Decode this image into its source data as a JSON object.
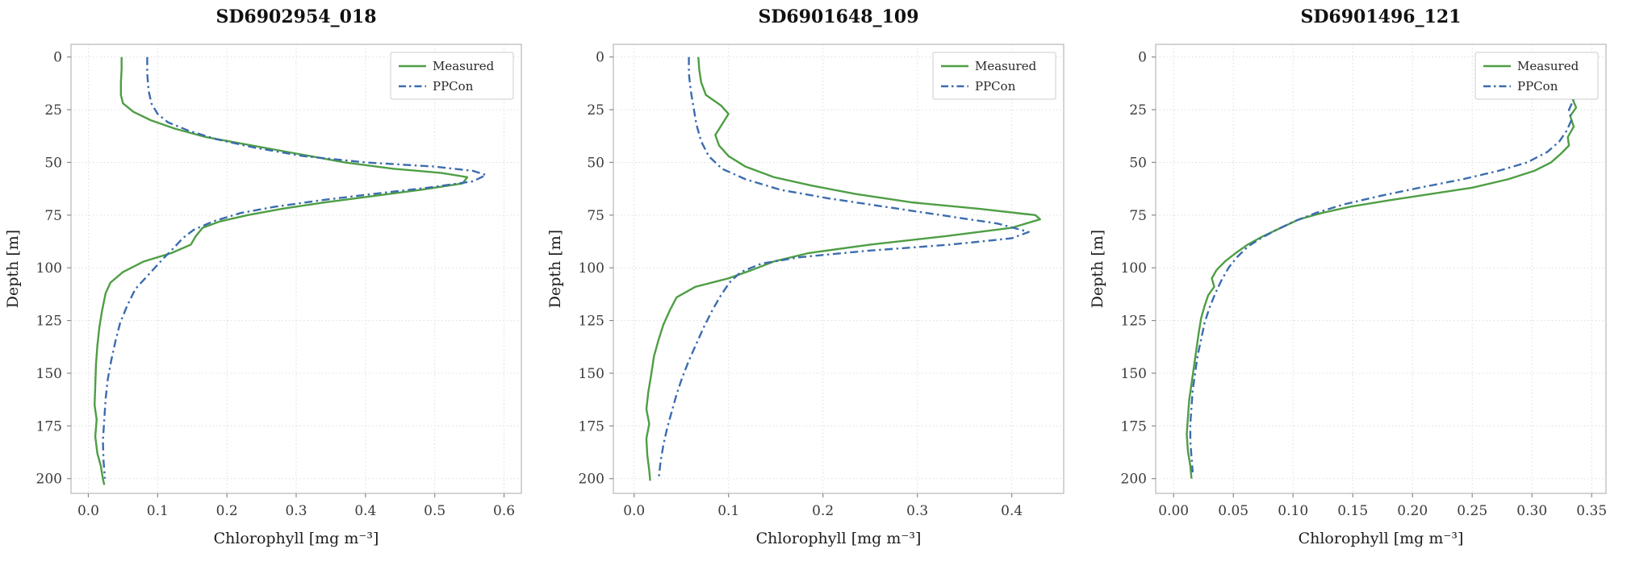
{
  "figure": {
    "background": "#ffffff",
    "grid_color": "#dcdcdc",
    "spine_color": "#bdbdbd",
    "tick_color": "#8a8a8a"
  },
  "chart_data": [
    {
      "type": "line",
      "title": "SD6902954_018",
      "xlabel": "Chlorophyll [mg m⁻³]",
      "ylabel": "Depth [m]",
      "legend_position": "top-right",
      "grid": true,
      "y_inverted": true,
      "xmin": -0.025,
      "xmax": 0.625,
      "ymin": -6,
      "ymax": 207,
      "xticks": [
        0.0,
        0.1,
        0.2,
        0.3,
        0.4,
        0.5,
        0.6
      ],
      "xtick_labels": [
        "0.0",
        "0.1",
        "0.2",
        "0.3",
        "0.4",
        "0.5",
        "0.6"
      ],
      "yticks": [
        0,
        25,
        50,
        75,
        100,
        125,
        150,
        175,
        200
      ],
      "ytick_labels": [
        "0",
        "25",
        "50",
        "75",
        "100",
        "125",
        "150",
        "175",
        "200"
      ],
      "series": [
        {
          "name": "Measured",
          "color": "#4e9e44",
          "dash": "solid",
          "points": [
            [
              0.048,
              0
            ],
            [
              0.048,
              6
            ],
            [
              0.047,
              12
            ],
            [
              0.047,
              18
            ],
            [
              0.05,
              22
            ],
            [
              0.065,
              26
            ],
            [
              0.09,
              30
            ],
            [
              0.125,
              34
            ],
            [
              0.17,
              38
            ],
            [
              0.22,
              41
            ],
            [
              0.27,
              44
            ],
            [
              0.32,
              47
            ],
            [
              0.37,
              50
            ],
            [
              0.44,
              53
            ],
            [
              0.51,
              55
            ],
            [
              0.547,
              57
            ],
            [
              0.54,
              60
            ],
            [
              0.48,
              63
            ],
            [
              0.41,
              66
            ],
            [
              0.34,
              69
            ],
            [
              0.28,
              72
            ],
            [
              0.23,
              75
            ],
            [
              0.19,
              78
            ],
            [
              0.165,
              81
            ],
            [
              0.155,
              85
            ],
            [
              0.148,
              89
            ],
            [
              0.12,
              93
            ],
            [
              0.08,
              97
            ],
            [
              0.05,
              102
            ],
            [
              0.032,
              107
            ],
            [
              0.025,
              112
            ],
            [
              0.02,
              120
            ],
            [
              0.016,
              128
            ],
            [
              0.013,
              137
            ],
            [
              0.011,
              146
            ],
            [
              0.01,
              156
            ],
            [
              0.009,
              165
            ],
            [
              0.012,
              172
            ],
            [
              0.01,
              180
            ],
            [
              0.013,
              188
            ],
            [
              0.018,
              194
            ],
            [
              0.021,
              200
            ],
            [
              0.023,
              203
            ]
          ]
        },
        {
          "name": "PPCon",
          "color": "#3c6cae",
          "dash": "dashdot",
          "points": [
            [
              0.085,
              0
            ],
            [
              0.085,
              8
            ],
            [
              0.087,
              16
            ],
            [
              0.091,
              22
            ],
            [
              0.1,
              27
            ],
            [
              0.115,
              31
            ],
            [
              0.145,
              35
            ],
            [
              0.185,
              39
            ],
            [
              0.24,
              43
            ],
            [
              0.31,
              47
            ],
            [
              0.4,
              50
            ],
            [
              0.5,
              52
            ],
            [
              0.555,
              54
            ],
            [
              0.574,
              56
            ],
            [
              0.555,
              59
            ],
            [
              0.49,
              62
            ],
            [
              0.41,
              65
            ],
            [
              0.335,
              68
            ],
            [
              0.27,
              71
            ],
            [
              0.22,
              74
            ],
            [
              0.18,
              78
            ],
            [
              0.152,
              82
            ],
            [
              0.136,
              86
            ],
            [
              0.125,
              90
            ],
            [
              0.11,
              95
            ],
            [
              0.096,
              100
            ],
            [
              0.082,
              105
            ],
            [
              0.068,
              110
            ],
            [
              0.056,
              118
            ],
            [
              0.046,
              126
            ],
            [
              0.039,
              135
            ],
            [
              0.033,
              144
            ],
            [
              0.028,
              153
            ],
            [
              0.025,
              162
            ],
            [
              0.023,
              172
            ],
            [
              0.021,
              182
            ],
            [
              0.022,
              192
            ],
            [
              0.024,
              200
            ]
          ]
        }
      ]
    },
    {
      "type": "line",
      "title": "SD6901648_109",
      "xlabel": "Chlorophyll [mg m⁻³]",
      "ylabel": "Depth [m]",
      "legend_position": "top-right",
      "grid": true,
      "y_inverted": true,
      "xmin": -0.022,
      "xmax": 0.455,
      "ymin": -6,
      "ymax": 207,
      "xticks": [
        0.0,
        0.1,
        0.2,
        0.3,
        0.4
      ],
      "xtick_labels": [
        "0.0",
        "0.1",
        "0.2",
        "0.3",
        "0.4"
      ],
      "yticks": [
        0,
        25,
        50,
        75,
        100,
        125,
        150,
        175,
        200
      ],
      "ytick_labels": [
        "0",
        "25",
        "50",
        "75",
        "100",
        "125",
        "150",
        "175",
        "200"
      ],
      "series": [
        {
          "name": "Measured",
          "color": "#4e9e44",
          "dash": "solid",
          "points": [
            [
              0.068,
              0
            ],
            [
              0.069,
              6
            ],
            [
              0.071,
              12
            ],
            [
              0.076,
              18
            ],
            [
              0.092,
              23
            ],
            [
              0.1,
              27
            ],
            [
              0.093,
              32
            ],
            [
              0.086,
              37
            ],
            [
              0.09,
              42
            ],
            [
              0.1,
              47
            ],
            [
              0.118,
              52
            ],
            [
              0.148,
              57
            ],
            [
              0.188,
              61
            ],
            [
              0.235,
              65
            ],
            [
              0.295,
              69
            ],
            [
              0.365,
              72
            ],
            [
              0.425,
              75
            ],
            [
              0.43,
              77
            ],
            [
              0.4,
              81
            ],
            [
              0.33,
              85
            ],
            [
              0.25,
              89
            ],
            [
              0.185,
              93
            ],
            [
              0.148,
              97
            ],
            [
              0.125,
              101
            ],
            [
              0.1,
              105
            ],
            [
              0.065,
              109
            ],
            [
              0.045,
              114
            ],
            [
              0.038,
              120
            ],
            [
              0.031,
              127
            ],
            [
              0.026,
              134
            ],
            [
              0.021,
              142
            ],
            [
              0.018,
              151
            ],
            [
              0.015,
              159
            ],
            [
              0.013,
              167
            ],
            [
              0.016,
              174
            ],
            [
              0.013,
              181
            ],
            [
              0.014,
              189
            ],
            [
              0.016,
              196
            ],
            [
              0.017,
              201
            ]
          ]
        },
        {
          "name": "PPCon",
          "color": "#3c6cae",
          "dash": "dashdot",
          "points": [
            [
              0.058,
              0
            ],
            [
              0.058,
              8
            ],
            [
              0.06,
              16
            ],
            [
              0.063,
              24
            ],
            [
              0.066,
              32
            ],
            [
              0.071,
              40
            ],
            [
              0.079,
              47
            ],
            [
              0.093,
              53
            ],
            [
              0.118,
              58
            ],
            [
              0.155,
              63
            ],
            [
              0.205,
              67
            ],
            [
              0.265,
              71
            ],
            [
              0.325,
              75
            ],
            [
              0.385,
              79
            ],
            [
              0.418,
              83
            ],
            [
              0.4,
              86
            ],
            [
              0.335,
              89
            ],
            [
              0.245,
              92
            ],
            [
              0.175,
              95
            ],
            [
              0.135,
              98
            ],
            [
              0.113,
              102
            ],
            [
              0.101,
              107
            ],
            [
              0.092,
              113
            ],
            [
              0.083,
              120
            ],
            [
              0.074,
              128
            ],
            [
              0.066,
              136
            ],
            [
              0.058,
              144
            ],
            [
              0.051,
              152
            ],
            [
              0.045,
              160
            ],
            [
              0.04,
              168
            ],
            [
              0.035,
              176
            ],
            [
              0.031,
              184
            ],
            [
              0.028,
              192
            ],
            [
              0.026,
              200
            ]
          ]
        }
      ]
    },
    {
      "type": "line",
      "title": "SD6901496_121",
      "xlabel": "Chlorophyll [mg m⁻³]",
      "ylabel": "Depth [m]",
      "legend_position": "top-right",
      "grid": true,
      "y_inverted": true,
      "xmin": -0.015,
      "xmax": 0.362,
      "ymin": -6,
      "ymax": 207,
      "xticks": [
        0.0,
        0.05,
        0.1,
        0.15,
        0.2,
        0.25,
        0.3,
        0.35
      ],
      "xtick_labels": [
        "0.00",
        "0.05",
        "0.10",
        "0.15",
        "0.20",
        "0.25",
        "0.30",
        "0.35"
      ],
      "yticks": [
        0,
        25,
        50,
        75,
        100,
        125,
        150,
        175,
        200
      ],
      "ytick_labels": [
        "0",
        "25",
        "50",
        "75",
        "100",
        "125",
        "150",
        "175",
        "200"
      ],
      "series": [
        {
          "name": "Measured",
          "color": "#4e9e44",
          "dash": "solid",
          "points": [
            [
              0.345,
              0
            ],
            [
              0.338,
              4
            ],
            [
              0.342,
              8
            ],
            [
              0.336,
              12
            ],
            [
              0.34,
              16
            ],
            [
              0.334,
              20
            ],
            [
              0.337,
              24
            ],
            [
              0.332,
              28
            ],
            [
              0.335,
              33
            ],
            [
              0.33,
              38
            ],
            [
              0.331,
              42
            ],
            [
              0.324,
              46
            ],
            [
              0.316,
              50
            ],
            [
              0.302,
              54
            ],
            [
              0.28,
              58
            ],
            [
              0.25,
              62
            ],
            [
              0.215,
              65
            ],
            [
              0.18,
              68
            ],
            [
              0.148,
              71
            ],
            [
              0.124,
              74
            ],
            [
              0.105,
              77
            ],
            [
              0.09,
              81
            ],
            [
              0.075,
              85
            ],
            [
              0.062,
              89
            ],
            [
              0.052,
              93
            ],
            [
              0.043,
              97
            ],
            [
              0.036,
              101
            ],
            [
              0.032,
              105
            ],
            [
              0.034,
              109
            ],
            [
              0.029,
              113
            ],
            [
              0.026,
              118
            ],
            [
              0.023,
              124
            ],
            [
              0.021,
              131
            ],
            [
              0.019,
              139
            ],
            [
              0.017,
              147
            ],
            [
              0.015,
              155
            ],
            [
              0.013,
              163
            ],
            [
              0.012,
              171
            ],
            [
              0.011,
              179
            ],
            [
              0.012,
              187
            ],
            [
              0.014,
              194
            ],
            [
              0.015,
              200
            ]
          ]
        },
        {
          "name": "PPCon",
          "color": "#3c6cae",
          "dash": "dashdot",
          "points": [
            [
              0.34,
              0
            ],
            [
              0.334,
              5
            ],
            [
              0.338,
              10
            ],
            [
              0.333,
              15
            ],
            [
              0.335,
              20
            ],
            [
              0.331,
              25
            ],
            [
              0.333,
              30
            ],
            [
              0.329,
              35
            ],
            [
              0.323,
              40
            ],
            [
              0.313,
              45
            ],
            [
              0.296,
              50
            ],
            [
              0.272,
              54
            ],
            [
              0.242,
              58
            ],
            [
              0.206,
              62
            ],
            [
              0.172,
              66
            ],
            [
              0.142,
              70
            ],
            [
              0.119,
              74
            ],
            [
              0.101,
              78
            ],
            [
              0.086,
              82
            ],
            [
              0.073,
              86
            ],
            [
              0.062,
              90
            ],
            [
              0.053,
              95
            ],
            [
              0.046,
              100
            ],
            [
              0.04,
              106
            ],
            [
              0.035,
              112
            ],
            [
              0.03,
              119
            ],
            [
              0.026,
              126
            ],
            [
              0.023,
              134
            ],
            [
              0.02,
              142
            ],
            [
              0.018,
              150
            ],
            [
              0.016,
              158
            ],
            [
              0.015,
              166
            ],
            [
              0.014,
              174
            ],
            [
              0.014,
              182
            ],
            [
              0.015,
              190
            ],
            [
              0.016,
              197
            ]
          ]
        }
      ]
    }
  ]
}
